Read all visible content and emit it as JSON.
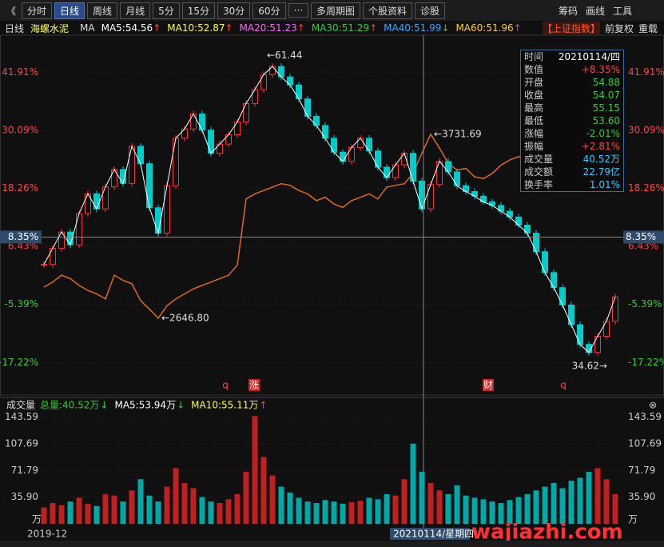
{
  "toolbar": {
    "back": "《",
    "tabs": [
      "分时",
      "日线",
      "周线",
      "月线",
      "5分",
      "15分",
      "30分",
      "60分",
      "···",
      "多周期图",
      "个股资料",
      "诊股"
    ],
    "tools": [
      "筹码",
      "画线",
      "工具"
    ]
  },
  "legend": {
    "period": "日线",
    "stock": "海螺水泥",
    "ma": "MA",
    "items": [
      {
        "text": "MA5:54.56",
        "arrow": "↑",
        "color": "#ffffff"
      },
      {
        "text": "MA10:52.87",
        "arrow": "↑",
        "color": "#ffff33"
      },
      {
        "text": "MA20:51.23",
        "arrow": "↑",
        "color": "#ff66ff"
      },
      {
        "text": "MA30:51.29",
        "arrow": "↑",
        "color": "#33cc33"
      },
      {
        "text": "MA40:51.99",
        "arrow": "↓",
        "color": "#33aaff"
      },
      {
        "text": "MA60:51.96",
        "arrow": "↑",
        "color": "#ffcc33"
      }
    ],
    "buttons": [
      "【上证指数】",
      "前复权",
      "重载"
    ]
  },
  "price_chart": {
    "pct_axis": {
      "ylim": [
        -23.2,
        49.5
      ],
      "ticks": [
        {
          "value": 41.91,
          "label": "41.91%"
        },
        {
          "value": 30.09,
          "label": "30.09%"
        },
        {
          "value": 18.26,
          "label": "18.26%"
        },
        {
          "value": 6.43,
          "label": "6.43%"
        },
        {
          "value": -5.39,
          "label": "-5.39%"
        },
        {
          "value": -17.22,
          "label": "-17.22%"
        }
      ],
      "cursor": {
        "value": 8.35,
        "label": "8.35%"
      }
    },
    "price": {
      "ylim": [
        32.4,
        63.2
      ],
      "closes": [
        43.4,
        44.8,
        46.2,
        45.1,
        47.8,
        49.5,
        48.2,
        50.1,
        51.6,
        50.4,
        53.6,
        52.1,
        48.3,
        46.1,
        50.2,
        54.3,
        55.1,
        56.4,
        55.0,
        53.0,
        53.8,
        54.6,
        55.7,
        57.3,
        58.5,
        59.8,
        60.5,
        59.6,
        58.9,
        57.7,
        56.2,
        55.4,
        54.3,
        53.1,
        52.3,
        53.5,
        54.3,
        53.2,
        51.8,
        50.9,
        52.0,
        53.0,
        50.6,
        48.2,
        50.3,
        52.3,
        51.4,
        50.2,
        49.7,
        49.3,
        48.8,
        48.5,
        48.0,
        47.5,
        46.8,
        46.1,
        44.5,
        42.7,
        41.4,
        39.9,
        38.2,
        36.5,
        35.8,
        37.2,
        38.5,
        40.6
      ],
      "high": {
        "value": 61.44,
        "label": "←61.44"
      },
      "low": {
        "value": 34.62,
        "label": "34.62→"
      }
    },
    "index": {
      "ylim": [
        2212,
        4316
      ],
      "values": [
        2830,
        2860,
        2900,
        2880,
        2840,
        2810,
        2790,
        2760,
        2900,
        2870,
        2850,
        2750,
        2700,
        2646.8,
        2720,
        2760,
        2790,
        2820,
        2840,
        2860,
        2880,
        2900,
        2960,
        3350,
        3380,
        3400,
        3420,
        3440,
        3430,
        3400,
        3380,
        3340,
        3360,
        3320,
        3300,
        3340,
        3360,
        3380,
        3350,
        3420,
        3430,
        3440,
        3500,
        3620,
        3731.69,
        3650,
        3560,
        3520,
        3530,
        3480,
        3470,
        3500,
        3550,
        3580,
        3600,
        3590,
        3570,
        3560,
        3520,
        3540,
        3500,
        3480,
        3510,
        3530,
        3560,
        3550
      ],
      "high": {
        "value": 3731.69,
        "label": "←3731.69"
      },
      "low": {
        "value": 2646.8,
        "label": "←2646.80"
      }
    },
    "markers": [
      "q",
      "涨",
      "财",
      "q"
    ]
  },
  "info_box": {
    "rows": [
      {
        "label": "时间",
        "value": "20210114/四",
        "color": "#ffffff"
      },
      {
        "label": "数值",
        "value": "+8.35%",
        "color": "#ff4444"
      },
      {
        "label": "开盘",
        "value": "54.88",
        "color": "#33cc33"
      },
      {
        "label": "收盘",
        "value": "54.07",
        "color": "#33cc33"
      },
      {
        "label": "最高",
        "value": "55.15",
        "color": "#33cc33"
      },
      {
        "label": "最低",
        "value": "53.60",
        "color": "#33cc33"
      },
      {
        "label": "涨幅",
        "value": "-2.01%",
        "color": "#33cc33"
      },
      {
        "label": "振幅",
        "value": "+2.81%",
        "color": "#ff4444"
      },
      {
        "label": "成交量",
        "value": "40.52万",
        "color": "#33ccff"
      },
      {
        "label": "成交额",
        "value": "22.79亿",
        "color": "#33ccff"
      },
      {
        "label": "换手率",
        "value": "1.01%",
        "color": "#33ccff"
      }
    ]
  },
  "volume_chart": {
    "title": "成交量",
    "items": [
      {
        "text": "总量:40.52万",
        "arrow": "↓",
        "color": "#33cc33"
      },
      {
        "text": "MA5:53.94万",
        "arrow": "↓",
        "color": "#ffffff"
      },
      {
        "text": "MA10:55.11万",
        "arrow": "↑",
        "color": "#ffff33"
      }
    ],
    "ylim": [
      0,
      149.7
    ],
    "ticks": [
      143.59,
      107.69,
      71.79,
      {
        "value": 35.9,
        "label": "35.90"
      }
    ],
    "unit": "万",
    "values": [
      22,
      28,
      25,
      30,
      35,
      27,
      24,
      40,
      38,
      30,
      45,
      60,
      38,
      30,
      50,
      75,
      55,
      48,
      36,
      30,
      28,
      33,
      40,
      70,
      145,
      90,
      65,
      50,
      42,
      35,
      30,
      28,
      32,
      30,
      27,
      29,
      31,
      35,
      33,
      40,
      38,
      60,
      108,
      70,
      55,
      45,
      40,
      52,
      38,
      35,
      33,
      30,
      28,
      32,
      36,
      40,
      45,
      50,
      55,
      48,
      58,
      62,
      70,
      75,
      60,
      40
    ]
  },
  "footer": {
    "start": "2019-12",
    "cursor_date": "20210114/星期四"
  },
  "watermark": "wajiazhi.com"
}
